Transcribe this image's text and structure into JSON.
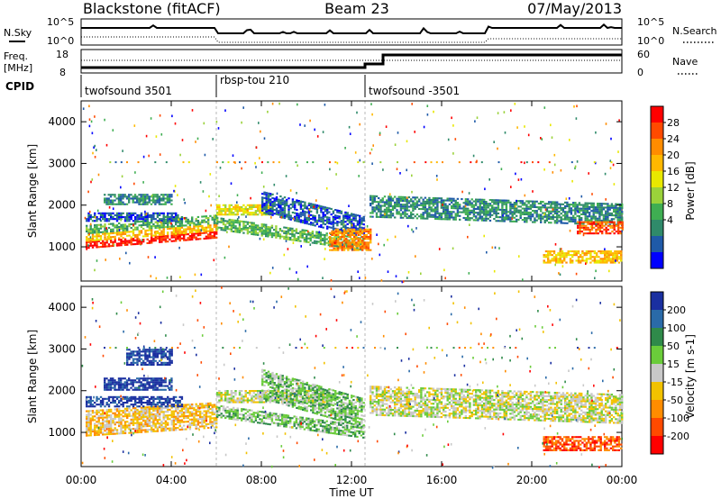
{
  "header": {
    "radar": "Blackstone (fitACF)",
    "beam": "Beam 23",
    "date": "07/May/2013"
  },
  "status_panel": {
    "left_labels": {
      "nsky": "N.Sky",
      "freq": "Freq.",
      "freq_unit": "[MHz]",
      "cpid": "CPID"
    },
    "right_labels": {
      "nsearch": "N.Search",
      "nave": "Nave"
    },
    "noise_ticks": [
      "10^5",
      "10^0"
    ],
    "freq_ticks": [
      "18",
      "8"
    ],
    "nave_ticks": [
      "60",
      "0"
    ],
    "modes": [
      {
        "label": "twofsound 3501",
        "start_h": 0,
        "end_h": 6
      },
      {
        "label": "rbsp-tou 210",
        "start_h": 6,
        "end_h": 12.6
      },
      {
        "label": "twofsound -3501",
        "start_h": 12.6,
        "end_h": 24
      }
    ]
  },
  "chart_data": [
    {
      "type": "heatmap",
      "name": "power",
      "ylabel": "Slant Range [km]",
      "xlabel": "Time UT",
      "yticks": [
        1000,
        2000,
        3000,
        4000
      ],
      "ylim": [
        180,
        4500
      ],
      "xlim": [
        0,
        24
      ],
      "colorbar": {
        "label": "Power [dB]",
        "ticks": [
          "28",
          "24",
          "20",
          "16",
          "12",
          "8",
          "4"
        ],
        "colors": [
          "#ff0000",
          "#ff4a00",
          "#ff8c00",
          "#ffb800",
          "#e8e800",
          "#9ad23a",
          "#3fae52",
          "#2f8a6a",
          "#1f5aa8",
          "#0000ff"
        ]
      },
      "bands": [
        {
          "t0": 0.2,
          "t1": 6.0,
          "r0": 950,
          "r1": 1120,
          "slope": 250,
          "c": 0
        },
        {
          "t0": 0.2,
          "t1": 6.0,
          "r0": 1120,
          "r1": 1300,
          "slope": 250,
          "c": 3
        },
        {
          "t0": 0.2,
          "t1": 6.0,
          "r0": 1300,
          "r1": 1500,
          "slope": 250,
          "c": 6
        },
        {
          "t0": 0.2,
          "t1": 4.5,
          "r0": 1600,
          "r1": 1800,
          "slope": 0,
          "c": 8
        },
        {
          "t0": 1.0,
          "t1": 4.0,
          "r0": 2000,
          "r1": 2250,
          "slope": 0,
          "c": 7
        },
        {
          "t0": 6.0,
          "t1": 8.5,
          "r0": 1750,
          "r1": 2000,
          "slope": 0,
          "c": 4
        },
        {
          "t0": 6.0,
          "t1": 12.5,
          "r0": 1400,
          "r1": 1700,
          "slope": -500,
          "c": 6
        },
        {
          "t0": 8.0,
          "t1": 12.5,
          "r0": 1800,
          "r1": 2300,
          "slope": -600,
          "c": 8
        },
        {
          "t0": 11.0,
          "t1": 12.8,
          "r0": 900,
          "r1": 1400,
          "slope": 0,
          "c": 2
        },
        {
          "t0": 12.8,
          "t1": 24.0,
          "r0": 1700,
          "r1": 2200,
          "slope": -200,
          "c": 7
        },
        {
          "t0": 20.5,
          "t1": 24.0,
          "r0": 600,
          "r1": 900,
          "slope": 0,
          "c": 3
        },
        {
          "t0": 22.0,
          "t1": 24.0,
          "r0": 1300,
          "r1": 1600,
          "slope": 0,
          "c": 1
        }
      ]
    },
    {
      "type": "heatmap",
      "name": "velocity",
      "ylabel": "Slant Range [km]",
      "xlabel": "Time UT",
      "yticks": [
        1000,
        2000,
        3000,
        4000
      ],
      "ylim": [
        180,
        4500
      ],
      "xlim": [
        0,
        24
      ],
      "xticks": [
        "00:00",
        "04:00",
        "08:00",
        "12:00",
        "16:00",
        "20:00",
        "00:00"
      ],
      "colorbar": {
        "label": "Velocity [m s-1]",
        "ticks": [
          "200",
          "100",
          "50",
          "15",
          "-15",
          "-50",
          "-100",
          "-200"
        ],
        "colors": [
          "#1a2fa0",
          "#2a6aa8",
          "#2f8a4a",
          "#6acc3a",
          "#c8c8c8",
          "#f2c200",
          "#ff8c00",
          "#ff4a00",
          "#ff0000"
        ]
      },
      "bands": [
        {
          "t0": 0.2,
          "t1": 6.0,
          "r0": 900,
          "r1": 1500,
          "slope": 200,
          "c": 5
        },
        {
          "t0": 0.2,
          "t1": 4.5,
          "r0": 1600,
          "r1": 1850,
          "slope": 0,
          "c": 0
        },
        {
          "t0": 1.0,
          "t1": 4.0,
          "r0": 2000,
          "r1": 2300,
          "slope": 0,
          "c": 0
        },
        {
          "t0": 6.0,
          "t1": 11.0,
          "r0": 1700,
          "r1": 2000,
          "slope": 0,
          "c": 4
        },
        {
          "t0": 6.0,
          "t1": 12.5,
          "r0": 1350,
          "r1": 1650,
          "slope": -500,
          "c": 3
        },
        {
          "t0": 8.0,
          "t1": 12.5,
          "r0": 1800,
          "r1": 2500,
          "slope": -700,
          "c": 3
        },
        {
          "t0": 12.8,
          "t1": 24.0,
          "r0": 1400,
          "r1": 2100,
          "slope": -200,
          "c": 4
        },
        {
          "t0": 20.5,
          "t1": 24.0,
          "r0": 550,
          "r1": 900,
          "slope": 0,
          "c": 7
        },
        {
          "t0": 2.0,
          "t1": 4.0,
          "r0": 2600,
          "r1": 3000,
          "slope": 0,
          "c": 0
        }
      ]
    }
  ]
}
